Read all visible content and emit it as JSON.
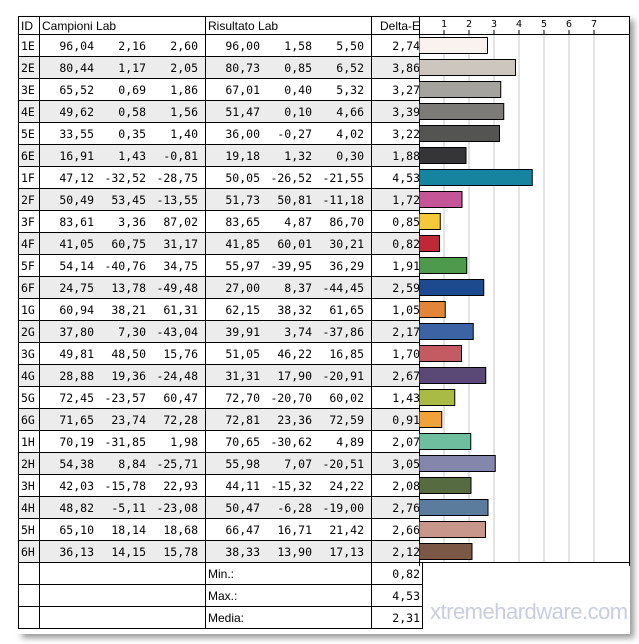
{
  "headers": {
    "id": "ID",
    "campioni": "Campioni Lab",
    "risultato": "Risultato Lab",
    "delta": "Delta-E"
  },
  "chart_data": {
    "type": "bar",
    "orientation": "horizontal",
    "xlim": [
      0,
      8
    ],
    "ticks": [
      1,
      2,
      3,
      4,
      5,
      6,
      7
    ],
    "grid": true,
    "categories": [
      "1E",
      "2E",
      "3E",
      "4E",
      "5E",
      "6E",
      "1F",
      "2F",
      "3F",
      "4F",
      "5F",
      "6F",
      "1G",
      "2G",
      "3G",
      "4G",
      "5G",
      "6G",
      "1H",
      "2H",
      "3H",
      "4H",
      "5H",
      "6H"
    ],
    "values": [
      2.74,
      3.86,
      3.27,
      3.39,
      3.22,
      1.88,
      4.53,
      1.72,
      0.85,
      0.82,
      1.91,
      2.59,
      1.05,
      2.17,
      1.7,
      2.67,
      1.43,
      0.91,
      2.07,
      3.05,
      2.08,
      2.76,
      2.66,
      2.12
    ],
    "colors": [
      "#f9f2ee",
      "#ccc6bf",
      "#a5a39d",
      "#7c7b77",
      "#545452",
      "#353537",
      "#16849e",
      "#c45597",
      "#f5c93a",
      "#c02838",
      "#4e9a4c",
      "#1d4a8e",
      "#e38538",
      "#3c64a4",
      "#c45a62",
      "#5a4876",
      "#a9ba45",
      "#f1a33a",
      "#6fbea0",
      "#8586ac",
      "#566b40",
      "#5b7c9d",
      "#c6978a",
      "#7a5845"
    ]
  },
  "rows": [
    [
      "1E",
      "96,04",
      "2,16",
      "2,60",
      "96,00",
      "1,58",
      "5,50",
      "2,74"
    ],
    [
      "2E",
      "80,44",
      "1,17",
      "2,05",
      "80,73",
      "0,85",
      "6,52",
      "3,86"
    ],
    [
      "3E",
      "65,52",
      "0,69",
      "1,86",
      "67,01",
      "0,40",
      "5,32",
      "3,27"
    ],
    [
      "4E",
      "49,62",
      "0,58",
      "1,56",
      "51,47",
      "0,10",
      "4,66",
      "3,39"
    ],
    [
      "5E",
      "33,55",
      "0,35",
      "1,40",
      "36,00",
      "-0,27",
      "4,02",
      "3,22"
    ],
    [
      "6E",
      "16,91",
      "1,43",
      "-0,81",
      "19,18",
      "1,32",
      "0,30",
      "1,88"
    ],
    [
      "1F",
      "47,12",
      "-32,52",
      "-28,75",
      "50,05",
      "-26,52",
      "-21,55",
      "4,53"
    ],
    [
      "2F",
      "50,49",
      "53,45",
      "-13,55",
      "51,73",
      "50,81",
      "-11,18",
      "1,72"
    ],
    [
      "3F",
      "83,61",
      "3,36",
      "87,02",
      "83,65",
      "4,87",
      "86,70",
      "0,85"
    ],
    [
      "4F",
      "41,05",
      "60,75",
      "31,17",
      "41,85",
      "60,01",
      "30,21",
      "0,82"
    ],
    [
      "5F",
      "54,14",
      "-40,76",
      "34,75",
      "55,97",
      "-39,95",
      "36,29",
      "1,91"
    ],
    [
      "6F",
      "24,75",
      "13,78",
      "-49,48",
      "27,00",
      "8,37",
      "-44,45",
      "2,59"
    ],
    [
      "1G",
      "60,94",
      "38,21",
      "61,31",
      "62,15",
      "38,32",
      "61,65",
      "1,05"
    ],
    [
      "2G",
      "37,80",
      "7,30",
      "-43,04",
      "39,91",
      "3,74",
      "-37,86",
      "2,17"
    ],
    [
      "3G",
      "49,81",
      "48,50",
      "15,76",
      "51,05",
      "46,22",
      "16,85",
      "1,70"
    ],
    [
      "4G",
      "28,88",
      "19,36",
      "-24,48",
      "31,31",
      "17,90",
      "-20,91",
      "2,67"
    ],
    [
      "5G",
      "72,45",
      "-23,57",
      "60,47",
      "72,70",
      "-20,70",
      "60,02",
      "1,43"
    ],
    [
      "6G",
      "71,65",
      "23,74",
      "72,28",
      "72,81",
      "23,36",
      "72,59",
      "0,91"
    ],
    [
      "1H",
      "70,19",
      "-31,85",
      "1,98",
      "70,65",
      "-30,62",
      "4,89",
      "2,07"
    ],
    [
      "2H",
      "54,38",
      "8,84",
      "-25,71",
      "55,98",
      "7,07",
      "-20,51",
      "3,05"
    ],
    [
      "3H",
      "42,03",
      "-15,78",
      "22,93",
      "44,11",
      "-15,32",
      "24,22",
      "2,08"
    ],
    [
      "4H",
      "48,82",
      "-5,11",
      "-23,08",
      "50,47",
      "-6,28",
      "-19,00",
      "2,76"
    ],
    [
      "5H",
      "65,10",
      "18,14",
      "18,68",
      "66,47",
      "16,71",
      "21,42",
      "2,66"
    ],
    [
      "6H",
      "36,13",
      "14,15",
      "15,78",
      "38,33",
      "13,90",
      "17,13",
      "2,12"
    ]
  ],
  "stats": [
    {
      "label": "Min.:",
      "value": "0,82"
    },
    {
      "label": "Max.:",
      "value": "4,53"
    },
    {
      "label": "Media:",
      "value": "2,31"
    }
  ],
  "watermark": "xtremehardware.com"
}
